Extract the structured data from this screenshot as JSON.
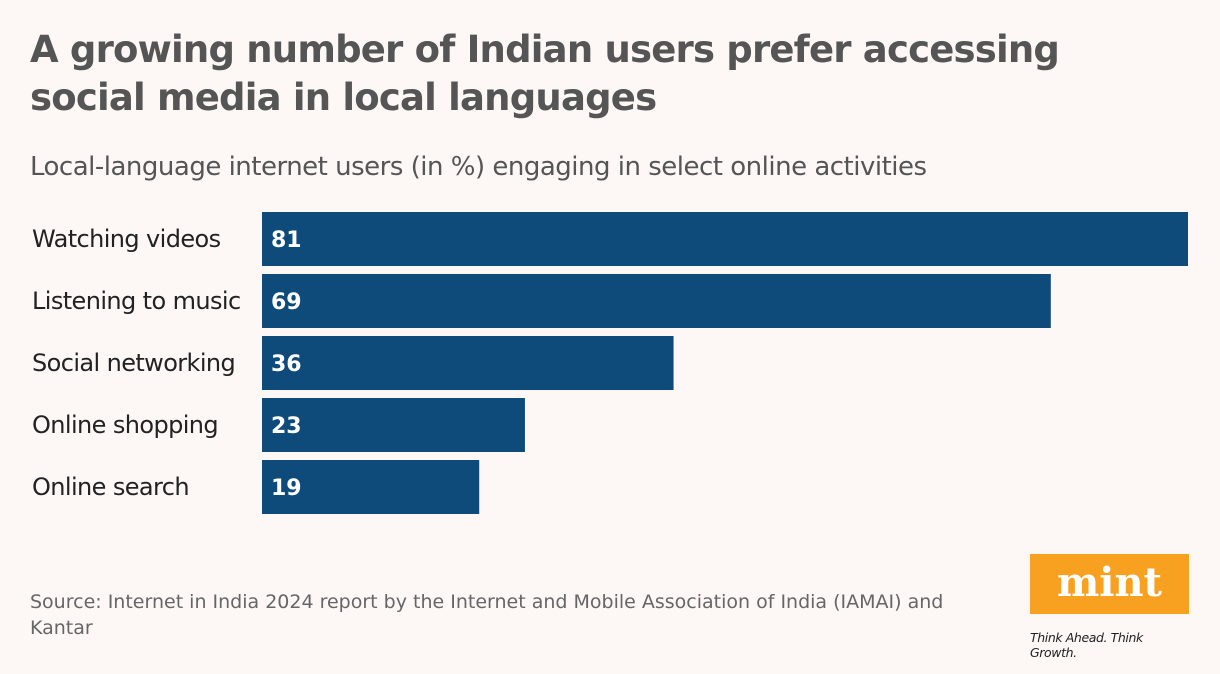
{
  "title": "A growing number of Indian users prefer accessing social media in local languages",
  "subtitle": "Local-language internet users (in %) engaging in select online activities",
  "source": "Source: Internet in India 2024 report by the Internet and Mobile Association of India (IAMAI) and Kantar",
  "logo": {
    "text": "mint",
    "tagline": "Think Ahead. Think Growth.",
    "color": "#f8a01f"
  },
  "chart_data": {
    "type": "bar",
    "orientation": "horizontal",
    "categories": [
      "Watching videos",
      "Listening to music",
      "Social networking",
      "Online shopping",
      "Online search"
    ],
    "values": [
      81,
      69,
      36,
      23,
      19
    ],
    "title": "A growing number of Indian users prefer accessing social media in local languages",
    "subtitle": "Local-language internet users (in %) engaging in select online activities",
    "xlim": [
      0,
      81
    ],
    "grid": false,
    "data_labels": true,
    "bar_color": "#0e4a7a"
  }
}
